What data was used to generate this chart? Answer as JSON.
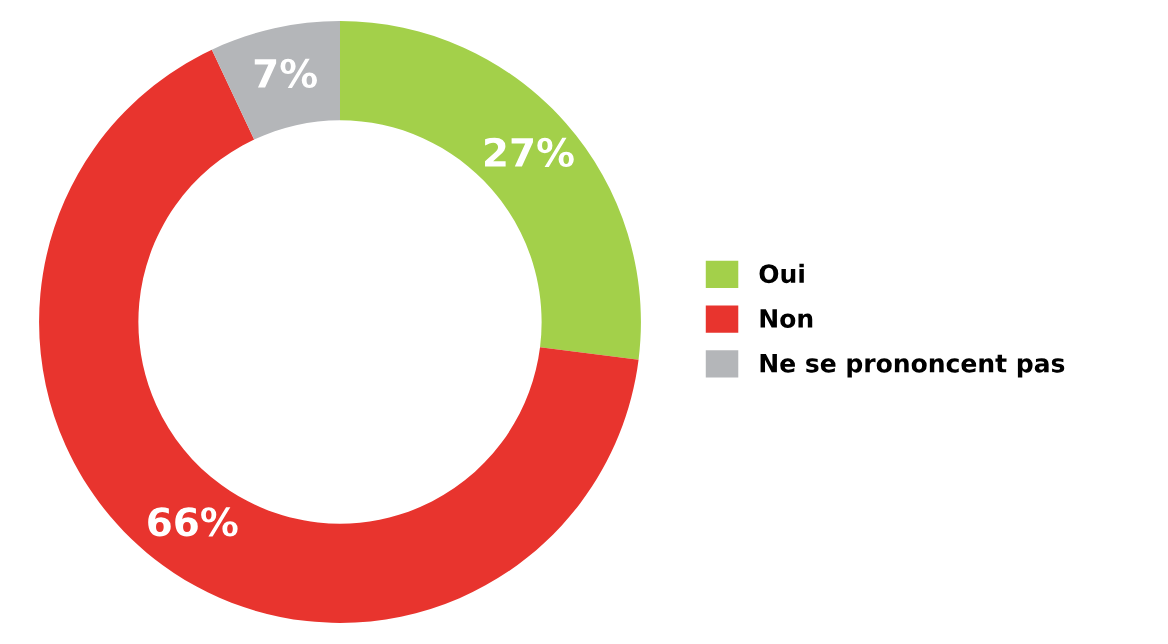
{
  "chart_data": {
    "type": "donut",
    "categories": [
      "Oui",
      "Non",
      "Ne se prononcent pas"
    ],
    "values": [
      27,
      66,
      7
    ],
    "colors": [
      "#a3d04a",
      "#e8342e",
      "#b4b6b9"
    ],
    "value_labels": [
      "27%",
      "66%",
      "7%"
    ],
    "legend": "right"
  }
}
